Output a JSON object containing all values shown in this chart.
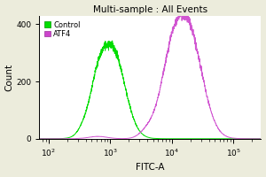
{
  "title": "Multi-sample : All Events",
  "xlabel": "FITC-A",
  "ylabel": "Count",
  "xlim_log": [
    1.85,
    5.45
  ],
  "ylim": [
    0,
    430
  ],
  "yticks": [
    0,
    200,
    400
  ],
  "background_color": "#ececdc",
  "plot_bg_color": "#ffffff",
  "control_color": "#00dd00",
  "atf4_color": "#cc44cc",
  "legend_labels": [
    "Control",
    "ATF4"
  ],
  "control_peak_log": 2.98,
  "control_peak_height": 295,
  "atf4_peak_log": 4.18,
  "atf4_peak_height": 390,
  "figsize": [
    3.0,
    2.0
  ],
  "dpi": 100
}
